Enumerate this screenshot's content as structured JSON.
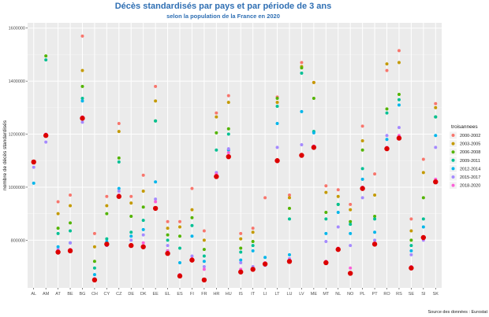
{
  "chart_data": {
    "type": "scatter",
    "title": "Décès standardisés par pays et par période de 3 ans",
    "subtitle": "selon la population de la France en 2020",
    "xlabel": "",
    "ylabel": "nombre de décès standardisés",
    "source": "Source des données : Eurostat",
    "legend_title": "troisannees",
    "legend_position": "right",
    "grid": true,
    "ylim": [
      620000,
      1620000
    ],
    "y_ticks": [
      800000,
      1000000,
      1200000,
      1400000,
      1600000
    ],
    "y_tick_labels": [
      "800000",
      "1000000",
      "1200000",
      "1400000",
      "1600000"
    ],
    "categories": [
      "AL",
      "AM",
      "AT",
      "BE",
      "BG",
      "CH",
      "CY",
      "CZ",
      "DE",
      "DK",
      "EE",
      "EL",
      "ES",
      "FI",
      "FR",
      "HR",
      "HU",
      "IS",
      "IT",
      "LI",
      "LT",
      "LU",
      "LV",
      "ME",
      "MT",
      "NL",
      "NO",
      "PL",
      "PT",
      "RO",
      "RS",
      "SE",
      "SI",
      "SK"
    ],
    "series": [
      {
        "name": "2000-2002",
        "color": "#f8766d",
        "values": [
          null,
          null,
          945000,
          970000,
          1570000,
          825000,
          965000,
          1240000,
          965000,
          1045000,
          1380000,
          870000,
          870000,
          995000,
          835000,
          1280000,
          1345000,
          825000,
          845000,
          960000,
          1340000,
          970000,
          1470000,
          1395000,
          1005000,
          990000,
          935000,
          1230000,
          1050000,
          1440000,
          1515000,
          880000,
          1105000,
          1315000
        ]
      },
      {
        "name": "2003-2005",
        "color": "#c49a00",
        "values": [
          null,
          null,
          900000,
          930000,
          1440000,
          775000,
          930000,
          1210000,
          940000,
          985000,
          1325000,
          845000,
          850000,
          915000,
          800000,
          1265000,
          1320000,
          805000,
          830000,
          null,
          1320000,
          960000,
          1455000,
          1395000,
          980000,
          965000,
          915000,
          1175000,
          970000,
          1465000,
          1470000,
          835000,
          1055000,
          1300000
        ]
      },
      {
        "name": "2006-2008",
        "color": "#53b400",
        "values": [
          null,
          1495000,
          845000,
          865000,
          1380000,
          720000,
          900000,
          1110000,
          890000,
          925000,
          1250000,
          820000,
          815000,
          885000,
          765000,
          1205000,
          1220000,
          770000,
          795000,
          null,
          1335000,
          920000,
          1450000,
          1335000,
          905000,
          935000,
          870000,
          1140000,
          890000,
          1295000,
          1350000,
          800000,
          960000,
          1265000
        ]
      },
      {
        "name": "2009-2011",
        "color": "#00c094",
        "values": [
          null,
          1480000,
          825000,
          835000,
          1335000,
          695000,
          805000,
          1095000,
          830000,
          875000,
          1250000,
          800000,
          770000,
          855000,
          740000,
          1140000,
          1200000,
          755000,
          780000,
          null,
          1305000,
          880000,
          1430000,
          1210000,
          880000,
          935000,
          860000,
          1070000,
          880000,
          1280000,
          1330000,
          780000,
          880000,
          1265000
        ]
      },
      {
        "name": "2012-2014",
        "color": "#00b6eb",
        "values": [
          1015000,
          null,
          775000,
          790000,
          1325000,
          670000,
          795000,
          995000,
          815000,
          840000,
          1020000,
          760000,
          715000,
          815000,
          720000,
          1045000,
          1140000,
          725000,
          760000,
          735000,
          1240000,
          745000,
          1285000,
          1205000,
          825000,
          905000,
          825000,
          1030000,
          830000,
          1180000,
          1310000,
          760000,
          850000,
          1195000
        ]
      },
      {
        "name": "2015-2017",
        "color": "#a58aff",
        "values": [
          1075000,
          1170000,
          765000,
          790000,
          1245000,
          655000,
          780000,
          985000,
          800000,
          820000,
          955000,
          780000,
          665000,
          740000,
          700000,
          1055000,
          1145000,
          715000,
          700000,
          705000,
          1150000,
          730000,
          1160000,
          1155000,
          795000,
          850000,
          780000,
          960000,
          800000,
          1195000,
          1225000,
          745000,
          800000,
          1150000
        ]
      },
      {
        "name": "2018-2020",
        "color": "#fb61d7",
        "values": [
          1095000,
          1200000,
          760000,
          765000,
          1265000,
          650000,
          785000,
          970000,
          780000,
          790000,
          945000,
          760000,
          670000,
          730000,
          690000,
          1050000,
          1130000,
          690000,
          690000,
          715000,
          1100000,
          725000,
          1120000,
          1155000,
          720000,
          770000,
          695000,
          1000000,
          790000,
          1150000,
          1195000,
          700000,
          805000,
          1030000
        ]
      }
    ],
    "highlight_series": {
      "name": "highlight",
      "color": "#dc0000",
      "values": [
        1095000,
        1195000,
        755000,
        760000,
        1260000,
        650000,
        785000,
        965000,
        780000,
        775000,
        920000,
        750000,
        665000,
        725000,
        650000,
        1040000,
        1115000,
        680000,
        690000,
        710000,
        1100000,
        720000,
        1120000,
        1150000,
        715000,
        765000,
        675000,
        995000,
        785000,
        1145000,
        1185000,
        695000,
        810000,
        1020000
      ]
    }
  }
}
